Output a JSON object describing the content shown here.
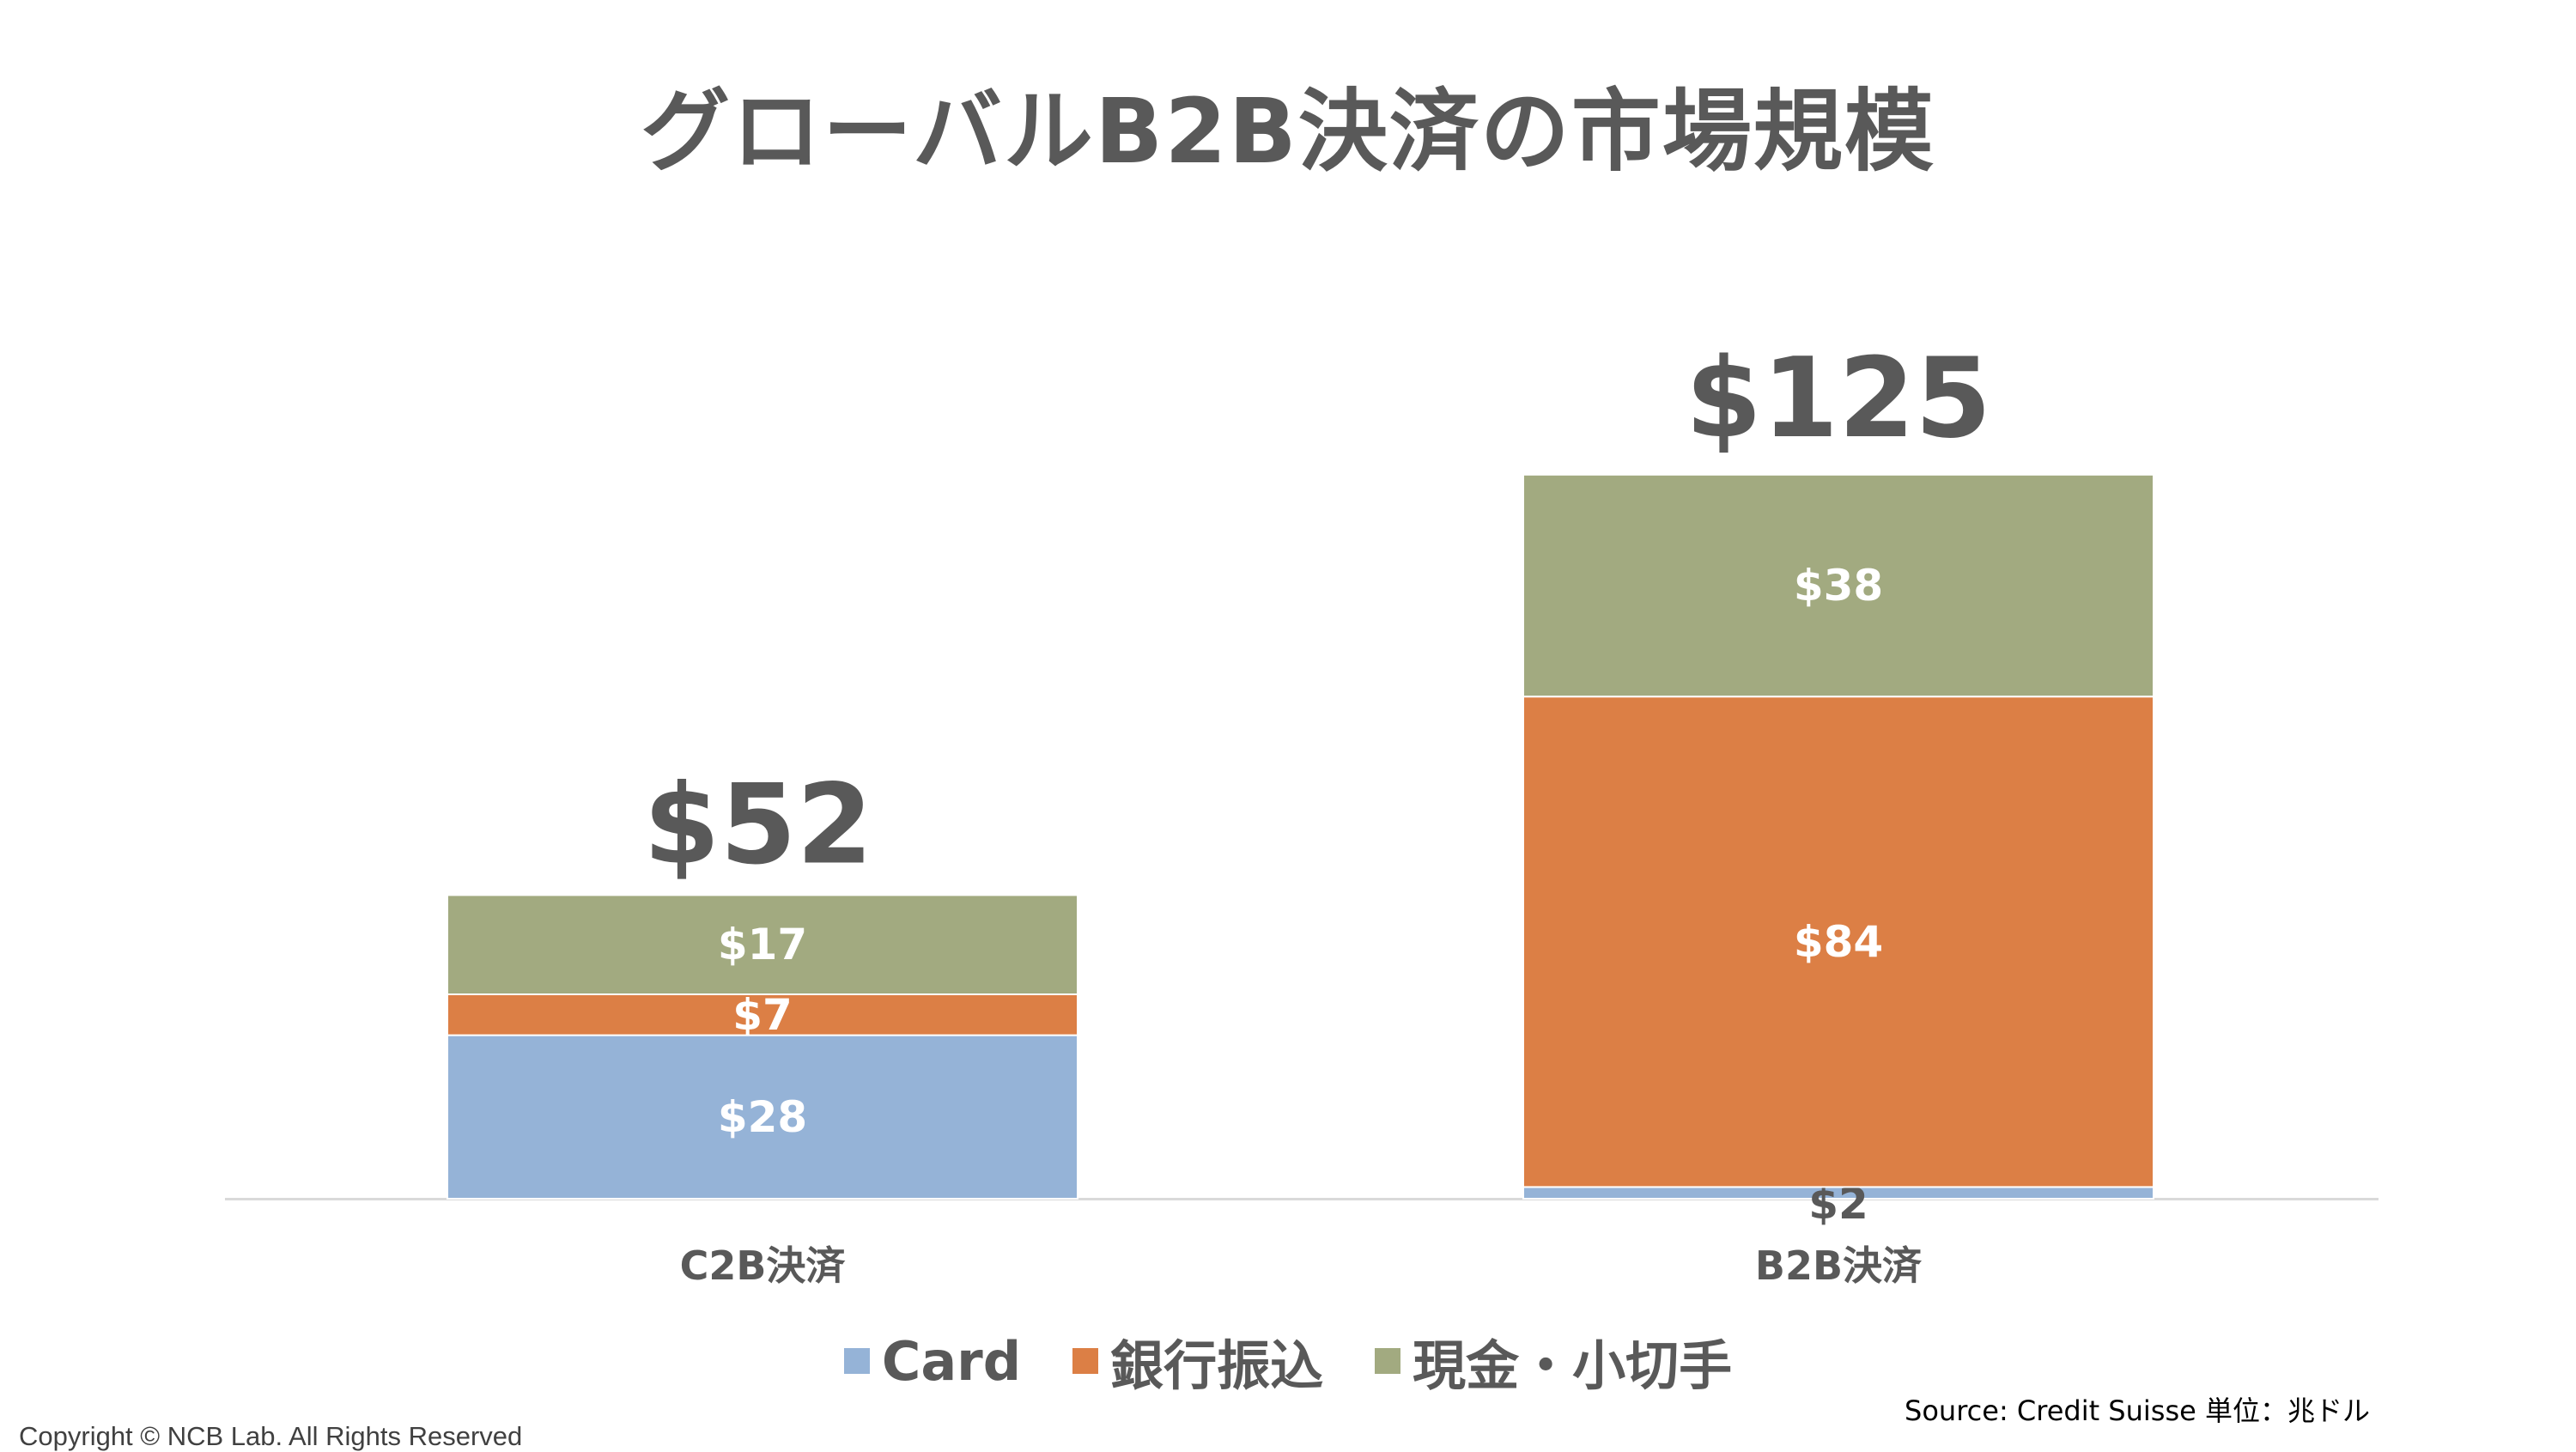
{
  "title": "グローバルB2B決済の市場規模",
  "chart_data": {
    "type": "bar",
    "stacked": true,
    "title": "グローバルB2B決済の市場規模",
    "categories": [
      "C2B決済",
      "B2B決済"
    ],
    "series": [
      {
        "name": "Card",
        "values": [
          28,
          2
        ],
        "labels": [
          "$28",
          "$2"
        ],
        "color": "#95B3D7"
      },
      {
        "name": "銀行振込",
        "values": [
          7,
          84
        ],
        "labels": [
          "$7",
          "$84"
        ],
        "color": "#DC7F45"
      },
      {
        "name": "現金・小切手",
        "values": [
          17,
          38
        ],
        "labels": [
          "$17",
          "$38"
        ],
        "color": "#A2AA80"
      }
    ],
    "totals": [
      52,
      125
    ],
    "total_labels": [
      "$52",
      "$125"
    ],
    "grid": false,
    "legend": "bottom",
    "ylim": [
      0,
      125
    ]
  },
  "source": "Source: Credit Suisse 単位：兆ドル",
  "copyright": "Copyright © NCB Lab. All Rights Reserved"
}
